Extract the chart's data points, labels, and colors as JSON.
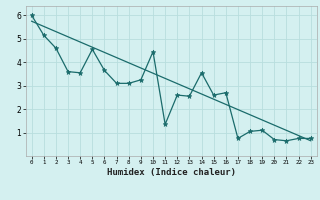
{
  "xlabel": "Humidex (Indice chaleur)",
  "ylabel": "",
  "bg_color": "#d4f0f0",
  "grid_color": "#b8dede",
  "line_color": "#1a6b6b",
  "xlim": [
    -0.5,
    23.5
  ],
  "ylim": [
    0,
    6.4
  ],
  "xticks": [
    0,
    1,
    2,
    3,
    4,
    5,
    6,
    7,
    8,
    9,
    10,
    11,
    12,
    13,
    14,
    15,
    16,
    17,
    18,
    19,
    20,
    21,
    22,
    23
  ],
  "yticks": [
    1,
    2,
    3,
    4,
    5,
    6
  ],
  "data_x": [
    0,
    1,
    2,
    3,
    4,
    5,
    6,
    7,
    8,
    9,
    10,
    11,
    12,
    13,
    14,
    15,
    16,
    17,
    18,
    19,
    20,
    21,
    22,
    23
  ],
  "data_y": [
    6.0,
    5.15,
    4.6,
    3.6,
    3.55,
    4.55,
    3.65,
    3.1,
    3.1,
    3.25,
    4.45,
    1.35,
    2.6,
    2.55,
    3.55,
    2.6,
    2.7,
    0.75,
    1.05,
    1.1,
    0.7,
    0.65,
    0.75,
    0.75
  ],
  "trend_x": [
    0,
    23
  ],
  "trend_y": [
    5.75,
    0.65
  ]
}
